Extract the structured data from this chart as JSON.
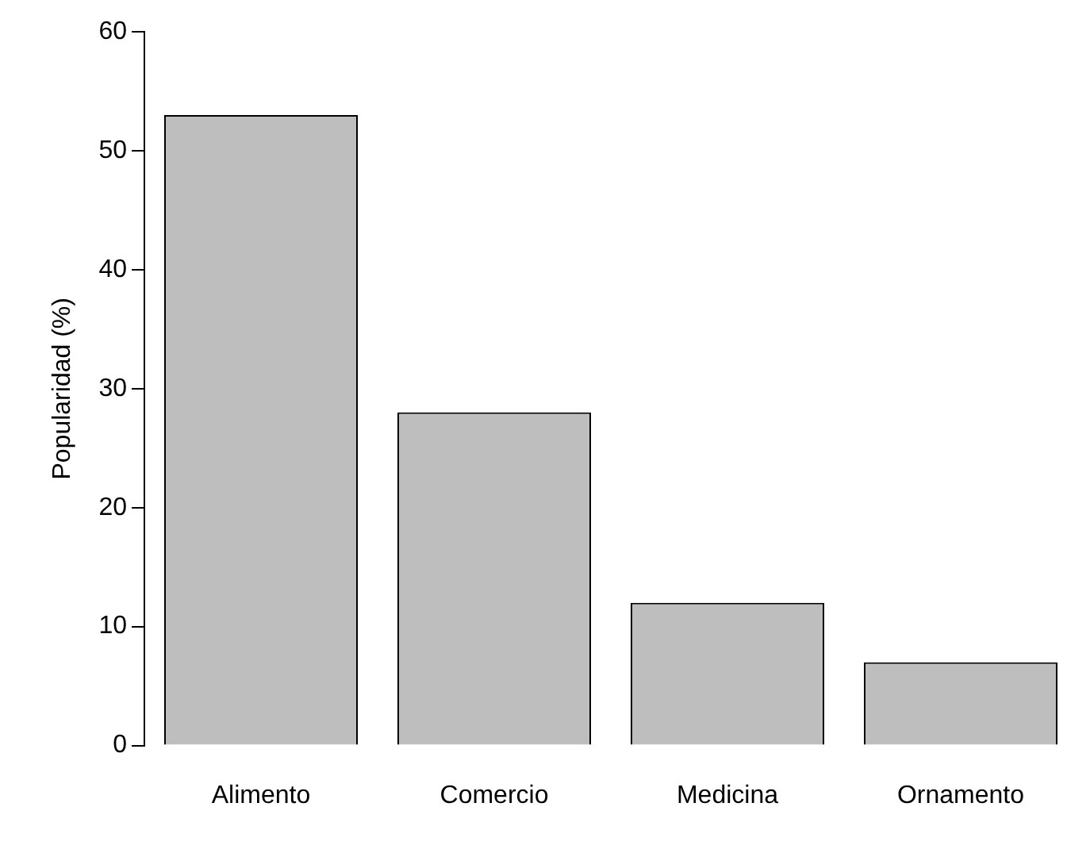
{
  "chart_data": {
    "type": "bar",
    "ylabel": "Popularidad (%)",
    "categories": [
      "Alimento",
      "Comercio",
      "Medicina",
      "Ornamento"
    ],
    "values": [
      53,
      28,
      12,
      7
    ],
    "color": "#bebebe",
    "ylim": [
      0,
      60
    ],
    "yticks": [
      0,
      10,
      20,
      30,
      40,
      50,
      60
    ],
    "grid": false,
    "legend": false
  }
}
